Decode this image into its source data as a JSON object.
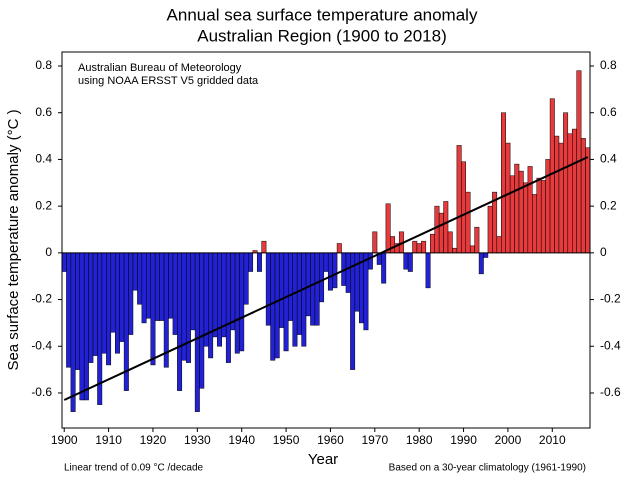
{
  "chart_data": {
    "type": "bar",
    "title": [
      "Annual sea surface temperature anomaly",
      "Australian Region (1900 to 2018)"
    ],
    "annotation": [
      "Australian Bureau of Meteorology",
      "using NOAA ERSST V5 gridded data"
    ],
    "footnote_left": "Linear trend of 0.09 °C /decade",
    "footnote_right": "Based on a 30-year climatology (1961-1990)",
    "ylabel": "Sea surface temperature anomaly (°C )",
    "xlabel": "Year",
    "positive_color": "#e63a3c",
    "negative_color": "#2222d4",
    "xlim": [
      1899.5,
      2018.5
    ],
    "xticks": [
      1900,
      1910,
      1920,
      1930,
      1940,
      1950,
      1960,
      1970,
      1980,
      1990,
      2000,
      2010
    ],
    "ylim": [
      -0.75,
      0.86
    ],
    "yticks": [
      -0.6,
      -0.4,
      -0.2,
      0,
      0.2,
      0.4,
      0.6,
      0.8
    ],
    "x": [
      1900,
      1901,
      1902,
      1903,
      1904,
      1905,
      1906,
      1907,
      1908,
      1909,
      1910,
      1911,
      1912,
      1913,
      1914,
      1915,
      1916,
      1917,
      1918,
      1919,
      1920,
      1921,
      1922,
      1923,
      1924,
      1925,
      1926,
      1927,
      1928,
      1929,
      1930,
      1931,
      1932,
      1933,
      1934,
      1935,
      1936,
      1937,
      1938,
      1939,
      1940,
      1941,
      1942,
      1943,
      1944,
      1945,
      1946,
      1947,
      1948,
      1949,
      1950,
      1951,
      1952,
      1953,
      1954,
      1955,
      1956,
      1957,
      1958,
      1959,
      1960,
      1961,
      1962,
      1963,
      1964,
      1965,
      1966,
      1967,
      1968,
      1969,
      1970,
      1971,
      1972,
      1973,
      1974,
      1975,
      1976,
      1977,
      1978,
      1979,
      1980,
      1981,
      1982,
      1983,
      1984,
      1985,
      1986,
      1987,
      1988,
      1989,
      1990,
      1991,
      1992,
      1993,
      1994,
      1995,
      1996,
      1997,
      1998,
      1999,
      2000,
      2001,
      2002,
      2003,
      2004,
      2005,
      2006,
      2007,
      2008,
      2009,
      2010,
      2011,
      2012,
      2013,
      2014,
      2015,
      2016,
      2017,
      2018
    ],
    "values": [
      -0.08,
      -0.49,
      -0.68,
      -0.5,
      -0.63,
      -0.63,
      -0.47,
      -0.44,
      -0.65,
      -0.43,
      -0.48,
      -0.34,
      -0.43,
      -0.38,
      -0.59,
      -0.35,
      -0.16,
      -0.22,
      -0.3,
      -0.28,
      -0.48,
      -0.29,
      -0.29,
      -0.49,
      -0.28,
      -0.35,
      -0.59,
      -0.46,
      -0.47,
      -0.33,
      -0.68,
      -0.58,
      -0.4,
      -0.45,
      -0.36,
      -0.4,
      -0.36,
      -0.47,
      -0.33,
      -0.43,
      -0.42,
      -0.22,
      -0.08,
      0.01,
      -0.08,
      0.05,
      -0.31,
      -0.46,
      -0.45,
      -0.32,
      -0.42,
      -0.29,
      -0.4,
      -0.35,
      -0.4,
      -0.27,
      -0.31,
      -0.31,
      -0.21,
      -0.08,
      -0.16,
      -0.15,
      0.04,
      -0.14,
      -0.17,
      -0.5,
      -0.25,
      -0.3,
      -0.33,
      -0.07,
      0.09,
      -0.05,
      -0.13,
      0.21,
      0.07,
      0.04,
      0.09,
      -0.07,
      -0.08,
      0.05,
      0.04,
      0.05,
      -0.15,
      0.08,
      0.2,
      0.17,
      0.22,
      0.09,
      0.02,
      0.46,
      0.39,
      0.26,
      0.03,
      0.11,
      -0.09,
      -0.02,
      0.2,
      0.26,
      0.07,
      0.6,
      0.47,
      0.33,
      0.38,
      0.35,
      0.3,
      0.37,
      0.25,
      0.32,
      0.31,
      0.4,
      0.66,
      0.5,
      0.47,
      0.6,
      0.51,
      0.53,
      0.78,
      0.49,
      0.45
    ],
    "trend": {
      "x": [
        1900,
        2018
      ],
      "values": [
        -0.63,
        0.41
      ],
      "color": "#000000"
    }
  }
}
